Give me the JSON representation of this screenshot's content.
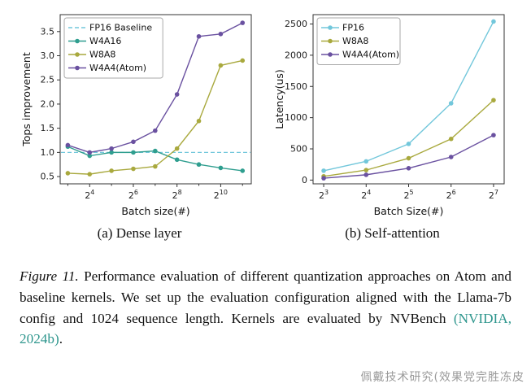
{
  "subcaptions": [
    "(a) Dense layer",
    "(b) Self-attention"
  ],
  "caption": {
    "label": "Figure 11.",
    "body": " Performance evaluation of different quantization approaches on Atom and baseline kernels. We set up the evaluation configuration aligned with the Llama-7b config and 1024 sequence length. Kernels are evaluated by NVBench ",
    "citation": "(NVIDIA, 2024b)",
    "after": "."
  },
  "watermark": {
    "text": "佩戴技术研究(效果党完胜冻皮"
  },
  "colors": {
    "citation": "#2e968d",
    "axis": "#333333",
    "fp16": "#72c7db",
    "w4a16": "#2f9e8f",
    "w8a8": "#a9a93e",
    "w4a4": "#6a51a0"
  },
  "chart_data": [
    {
      "type": "line",
      "title": "",
      "xlabel": "Batch size(#)",
      "ylabel": "Tops improvement",
      "x_scale": "log2",
      "x": [
        3,
        4,
        5,
        6,
        7,
        8,
        9,
        10,
        11
      ],
      "xlim": [
        2.65,
        11.4
      ],
      "ylim": [
        0.35,
        3.85
      ],
      "x_tick_values": [
        4,
        6,
        8,
        10
      ],
      "x_tick_labels": [
        "2^4",
        "2^6",
        "2^8",
        "2^10"
      ],
      "x_minor_ticks": [
        3,
        5,
        7,
        9,
        11
      ],
      "y_tick_values": [
        0.5,
        1.0,
        1.5,
        2.0,
        2.5,
        3.0,
        3.5
      ],
      "y_tick_labels": [
        "0.5",
        "1.0",
        "1.5",
        "2.0",
        "2.5",
        "3.0",
        "3.5"
      ],
      "legend_position": "top-left",
      "grid": false,
      "series": [
        {
          "name": "FP16 Baseline",
          "color": "#72c7db",
          "dashed": true,
          "baseline": 1.0
        },
        {
          "name": "W4A16",
          "color": "#2f9e8f",
          "marker": "circle",
          "values": [
            1.12,
            0.93,
            1.0,
            1.0,
            1.03,
            0.85,
            0.75,
            0.68,
            0.62
          ]
        },
        {
          "name": "W8A8",
          "color": "#a9a93e",
          "marker": "circle",
          "values": [
            0.57,
            0.55,
            0.62,
            0.66,
            0.71,
            1.08,
            1.65,
            2.8,
            2.9
          ]
        },
        {
          "name": "W4A4(Atom)",
          "color": "#6a51a0",
          "marker": "circle",
          "values": [
            1.15,
            1.0,
            1.08,
            1.22,
            1.45,
            2.2,
            3.4,
            3.45,
            3.68
          ]
        }
      ]
    },
    {
      "type": "line",
      "title": "",
      "xlabel": "Batch Size(#)",
      "ylabel": "Latency(us)",
      "x_scale": "log2",
      "x": [
        3,
        4,
        5,
        6,
        7
      ],
      "xlim": [
        2.75,
        7.25
      ],
      "ylim": [
        -60,
        2650
      ],
      "x_tick_values": [
        3,
        4,
        5,
        6,
        7
      ],
      "x_tick_labels": [
        "2^3",
        "2^4",
        "2^5",
        "2^6",
        "2^7"
      ],
      "x_minor_ticks": [],
      "y_tick_values": [
        0,
        500,
        1000,
        1500,
        2000,
        2500
      ],
      "y_tick_labels": [
        "0",
        "500",
        "1000",
        "1500",
        "2000",
        "2500"
      ],
      "legend_position": "top-left",
      "grid": false,
      "series": [
        {
          "name": "FP16",
          "color": "#72c7db",
          "marker": "circle",
          "values": [
            150,
            300,
            580,
            1230,
            2540
          ]
        },
        {
          "name": "W8A8",
          "color": "#a9a93e",
          "marker": "circle",
          "values": [
            60,
            160,
            350,
            660,
            1280
          ]
        },
        {
          "name": "W4A4(Atom)",
          "color": "#6a51a0",
          "marker": "circle",
          "values": [
            30,
            85,
            190,
            370,
            720
          ]
        }
      ]
    }
  ]
}
